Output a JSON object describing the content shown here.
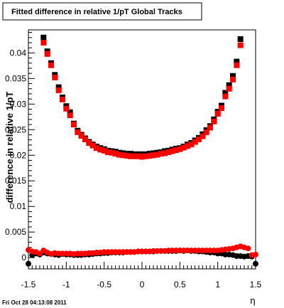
{
  "chart_data": {
    "type": "scatter",
    "title": "Fitted difference in relative 1/pT  Global Tracks",
    "xlabel": "η",
    "ylabel": "difference in relative 1/pT",
    "footer": "Fri Oct 28 04:13:08 2011",
    "xlim": [
      -1.5,
      1.5
    ],
    "ylim": [
      -0.0022,
      0.0445
    ],
    "x_ticks": [
      -1.5,
      -1,
      -0.5,
      0,
      0.5,
      1,
      1.5
    ],
    "x_tick_labels": [
      "-1.5",
      "-1",
      "-0.5",
      "0",
      "0.5",
      "1",
      "1.5"
    ],
    "y_ticks": [
      0,
      0.005,
      0.01,
      0.015,
      0.02,
      0.025,
      0.03,
      0.035,
      0.04
    ],
    "y_tick_labels": [
      "0",
      "0.005",
      "0.01",
      "0.015",
      "0.02",
      "0.025",
      "0.03",
      "0.035",
      "0.04"
    ],
    "grid": false,
    "colors": {
      "black_series": "#000000",
      "red_series": "#ff0000"
    },
    "series": [
      {
        "marker": "square",
        "color": "#000000",
        "x": [
          -1.3,
          -1.25,
          -1.2,
          -1.15,
          -1.1,
          -1.05,
          -1.0,
          -0.95,
          -0.9,
          -0.85,
          -0.8,
          -0.75,
          -0.7,
          -0.65,
          -0.6,
          -0.55,
          -0.5,
          -0.45,
          -0.4,
          -0.35,
          -0.3,
          -0.25,
          -0.2,
          -0.15,
          -0.1,
          -0.05,
          0.0,
          0.05,
          0.1,
          0.15,
          0.2,
          0.25,
          0.3,
          0.35,
          0.4,
          0.45,
          0.5,
          0.55,
          0.6,
          0.65,
          0.7,
          0.75,
          0.8,
          0.85,
          0.9,
          0.95,
          1.0,
          1.05,
          1.1,
          1.15,
          1.2,
          1.25,
          1.3
        ],
        "y": [
          0.043,
          0.0403,
          0.038,
          0.0357,
          0.0333,
          0.0313,
          0.0296,
          0.0284,
          0.0262,
          0.0248,
          0.024,
          0.0233,
          0.0226,
          0.0221,
          0.0217,
          0.0214,
          0.0212,
          0.0209,
          0.0208,
          0.0207,
          0.0205,
          0.0204,
          0.0203,
          0.0203,
          0.0202,
          0.0202,
          0.0202,
          0.0202,
          0.0203,
          0.0204,
          0.0205,
          0.0206,
          0.0208,
          0.0209,
          0.0211,
          0.0213,
          0.0214,
          0.0217,
          0.0221,
          0.0224,
          0.0229,
          0.0234,
          0.0241,
          0.0249,
          0.0257,
          0.027,
          0.0285,
          0.0297,
          0.0322,
          0.0337,
          0.0355,
          0.0383,
          0.0427
        ]
      },
      {
        "marker": "square",
        "color": "#ff0000",
        "x": [
          -1.3,
          -1.25,
          -1.2,
          -1.15,
          -1.1,
          -1.05,
          -1.0,
          -0.95,
          -0.9,
          -0.85,
          -0.8,
          -0.75,
          -0.7,
          -0.65,
          -0.6,
          -0.55,
          -0.5,
          -0.45,
          -0.4,
          -0.35,
          -0.3,
          -0.25,
          -0.2,
          -0.15,
          -0.1,
          -0.05,
          0.0,
          0.05,
          0.1,
          0.15,
          0.2,
          0.25,
          0.3,
          0.35,
          0.4,
          0.45,
          0.5,
          0.55,
          0.6,
          0.65,
          0.7,
          0.75,
          0.8,
          0.85,
          0.9,
          0.95,
          1.0,
          1.05,
          1.1,
          1.15,
          1.2,
          1.25,
          1.3
        ],
        "y": [
          0.042,
          0.0398,
          0.0376,
          0.0352,
          0.0327,
          0.0309,
          0.0291,
          0.0278,
          0.026,
          0.0245,
          0.0238,
          0.0231,
          0.0224,
          0.0219,
          0.0214,
          0.0211,
          0.0209,
          0.0206,
          0.0205,
          0.0203,
          0.0201,
          0.02,
          0.0199,
          0.0198,
          0.0198,
          0.0198,
          0.0197,
          0.0198,
          0.0199,
          0.02,
          0.0201,
          0.0203,
          0.0204,
          0.0206,
          0.0208,
          0.021,
          0.0212,
          0.0215,
          0.0218,
          0.0221,
          0.0226,
          0.0231,
          0.0237,
          0.0245,
          0.0254,
          0.0266,
          0.0281,
          0.0292,
          0.0315,
          0.033,
          0.0348,
          0.0376,
          0.0415
        ]
      },
      {
        "marker": "circle",
        "color": "#000000",
        "x": [
          -1.5,
          -1.45,
          -1.4,
          -1.35,
          -1.3,
          -1.25,
          -1.2,
          -1.15,
          -1.1,
          -1.05,
          -1.0,
          -0.95,
          -0.9,
          -0.85,
          -0.8,
          -0.75,
          -0.7,
          -0.65,
          -0.6,
          -0.55,
          -0.5,
          -0.45,
          -0.4,
          -0.35,
          -0.3,
          -0.25,
          -0.2,
          -0.15,
          -0.1,
          -0.05,
          0.0,
          0.05,
          0.1,
          0.15,
          0.2,
          0.25,
          0.3,
          0.35,
          0.4,
          0.45,
          0.5,
          0.55,
          0.6,
          0.65,
          0.7,
          0.75,
          0.8,
          0.85,
          0.9,
          0.95,
          1.0,
          1.05,
          1.1,
          1.15,
          1.2,
          1.25,
          1.3,
          1.35,
          1.4,
          1.45,
          1.5
        ],
        "y": [
          -0.0012,
          0.0005,
          0.0008,
          0.0006,
          0.001,
          0.0008,
          0.0007,
          0.0006,
          0.0005,
          0.0007,
          0.0006,
          0.0006,
          0.0005,
          0.0005,
          0.0005,
          0.0006,
          0.0006,
          0.0007,
          0.0008,
          0.0008,
          0.0009,
          0.0009,
          0.001,
          0.001,
          0.001,
          0.001,
          0.0011,
          0.0011,
          0.0011,
          0.0012,
          0.0012,
          0.0012,
          0.0012,
          0.0012,
          0.0013,
          0.0013,
          0.0013,
          0.0013,
          0.0013,
          0.0013,
          0.0014,
          0.0013,
          0.0014,
          0.0013,
          0.0013,
          0.0012,
          0.0012,
          0.0011,
          0.001,
          0.001,
          0.0008,
          0.0008,
          0.0006,
          0.0006,
          0.0005,
          0.0003,
          0.0003,
          0.0002,
          0.0003,
          0.0002,
          -0.0012
        ]
      },
      {
        "marker": "circle",
        "color": "#ff0000",
        "x": [
          -1.5,
          -1.45,
          -1.4,
          -1.35,
          -1.3,
          -1.25,
          -1.2,
          -1.15,
          -1.1,
          -1.05,
          -1.0,
          -0.95,
          -0.9,
          -0.85,
          -0.8,
          -0.75,
          -0.7,
          -0.65,
          -0.6,
          -0.55,
          -0.5,
          -0.45,
          -0.4,
          -0.35,
          -0.3,
          -0.25,
          -0.2,
          -0.15,
          -0.1,
          -0.05,
          0.0,
          0.05,
          0.1,
          0.15,
          0.2,
          0.25,
          0.3,
          0.35,
          0.4,
          0.45,
          0.5,
          0.55,
          0.6,
          0.65,
          0.7,
          0.75,
          0.8,
          0.85,
          0.9,
          0.95,
          1.0,
          1.05,
          1.1,
          1.15,
          1.2,
          1.25,
          1.3,
          1.35,
          1.4,
          1.45,
          1.5
        ],
        "y": [
          0.0015,
          0.0012,
          0.0011,
          0.0008,
          0.0014,
          0.001,
          0.0007,
          0.0009,
          0.0008,
          0.0008,
          0.0008,
          0.0008,
          0.0007,
          0.0008,
          0.0008,
          0.0008,
          0.0009,
          0.0009,
          0.001,
          0.001,
          0.0011,
          0.0011,
          0.0011,
          0.0011,
          0.0011,
          0.0011,
          0.0011,
          0.0011,
          0.0011,
          0.0012,
          0.0012,
          0.0012,
          0.0012,
          0.0013,
          0.0013,
          0.0013,
          0.0013,
          0.0014,
          0.0014,
          0.0014,
          0.0014,
          0.0014,
          0.0014,
          0.0014,
          0.0014,
          0.0014,
          0.0014,
          0.0014,
          0.0014,
          0.0014,
          0.0014,
          0.0015,
          0.0016,
          0.0017,
          0.0018,
          0.002,
          0.0022,
          0.002,
          0.0018,
          0.0005,
          0.0006
        ]
      }
    ]
  }
}
